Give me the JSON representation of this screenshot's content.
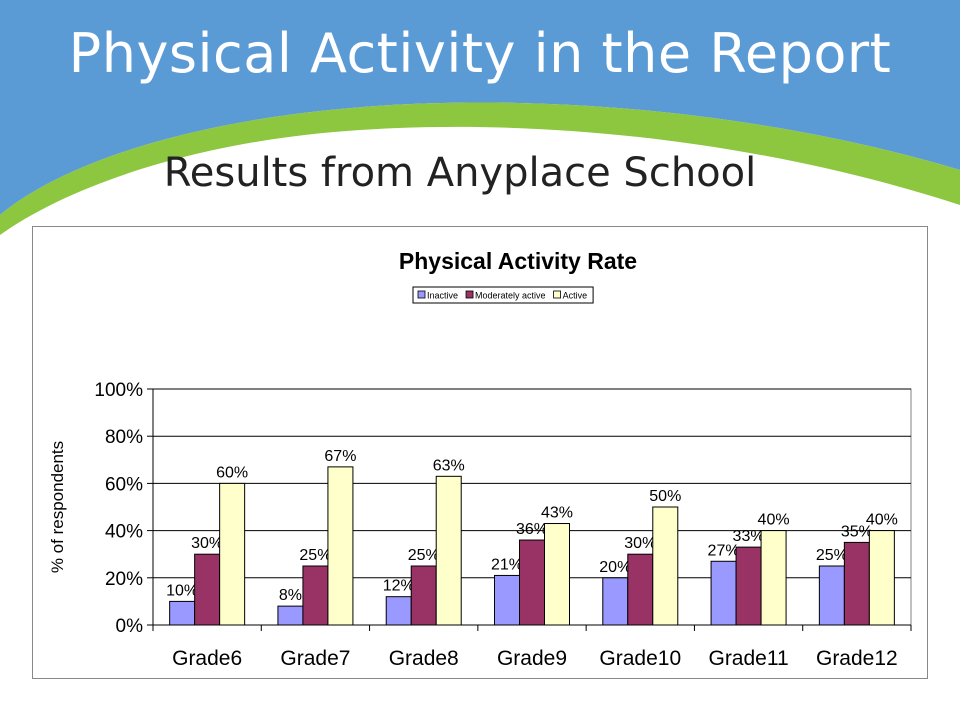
{
  "slide": {
    "title": "Physical Activity in the Report",
    "subtitle": "Results from Anyplace School"
  },
  "colors": {
    "banner_blue": "#5b9bd5",
    "banner_green": "#8dc63f"
  },
  "chart_data": {
    "type": "bar",
    "title": "Physical Activity Rate",
    "ylabel": "% of respondents",
    "xlabel": "",
    "ylim": [
      0,
      100
    ],
    "yticks": [
      "0%",
      "20%",
      "40%",
      "60%",
      "80%",
      "100%"
    ],
    "yticks_values": [
      0,
      20,
      40,
      60,
      80,
      100
    ],
    "grid": true,
    "legend_position": "top-center",
    "categories": [
      "Grade6",
      "Grade7",
      "Grade8",
      "Grade9",
      "Grade10",
      "Grade11",
      "Grade12"
    ],
    "series": [
      {
        "name": "Inactive",
        "color": "#9999ff",
        "values": [
          10,
          8,
          12,
          21,
          20,
          27,
          25
        ],
        "labels": [
          "10%",
          "8%",
          "12%",
          "21%",
          "20%",
          "27%",
          "25%"
        ]
      },
      {
        "name": "Moderately active",
        "color": "#993366",
        "values": [
          30,
          25,
          25,
          36,
          30,
          33,
          35
        ],
        "labels": [
          "30%",
          "25%",
          "25%",
          "36%",
          "30%",
          "33%",
          "35%"
        ]
      },
      {
        "name": "Active",
        "color": "#ffffcc",
        "values": [
          60,
          67,
          63,
          43,
          50,
          40,
          40
        ],
        "labels": [
          "60%",
          "67%",
          "63%",
          "43%",
          "50%",
          "40%",
          "40%"
        ]
      }
    ]
  }
}
